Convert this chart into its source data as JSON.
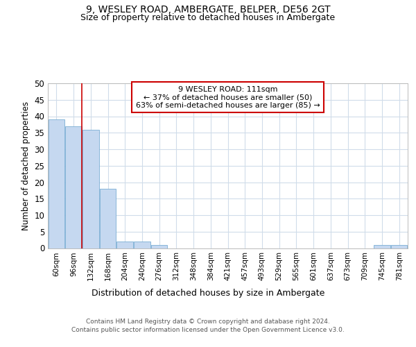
{
  "title1": "9, WESLEY ROAD, AMBERGATE, BELPER, DE56 2GT",
  "title2": "Size of property relative to detached houses in Ambergate",
  "xlabel": "Distribution of detached houses by size in Ambergate",
  "ylabel": "Number of detached properties",
  "categories": [
    "60sqm",
    "96sqm",
    "132sqm",
    "168sqm",
    "204sqm",
    "240sqm",
    "276sqm",
    "312sqm",
    "348sqm",
    "384sqm",
    "421sqm",
    "457sqm",
    "493sqm",
    "529sqm",
    "565sqm",
    "601sqm",
    "637sqm",
    "673sqm",
    "709sqm",
    "745sqm",
    "781sqm"
  ],
  "values": [
    39,
    37,
    36,
    18,
    2,
    2,
    1,
    0,
    0,
    0,
    0,
    0,
    0,
    0,
    0,
    0,
    0,
    0,
    0,
    1,
    1
  ],
  "bar_color": "#c5d8f0",
  "bar_edge_color": "#7aadd4",
  "vline_x": 1.5,
  "vline_color": "#cc0000",
  "annotation_lines": [
    "9 WESLEY ROAD: 111sqm",
    "← 37% of detached houses are smaller (50)",
    "63% of semi-detached houses are larger (85) →"
  ],
  "annotation_box_color": "#cc0000",
  "ylim": [
    0,
    50
  ],
  "yticks": [
    0,
    5,
    10,
    15,
    20,
    25,
    30,
    35,
    40,
    45,
    50
  ],
  "footer": "Contains HM Land Registry data © Crown copyright and database right 2024.\nContains public sector information licensed under the Open Government Licence v3.0.",
  "bg_color": "#ffffff",
  "grid_color": "#d0dcea"
}
